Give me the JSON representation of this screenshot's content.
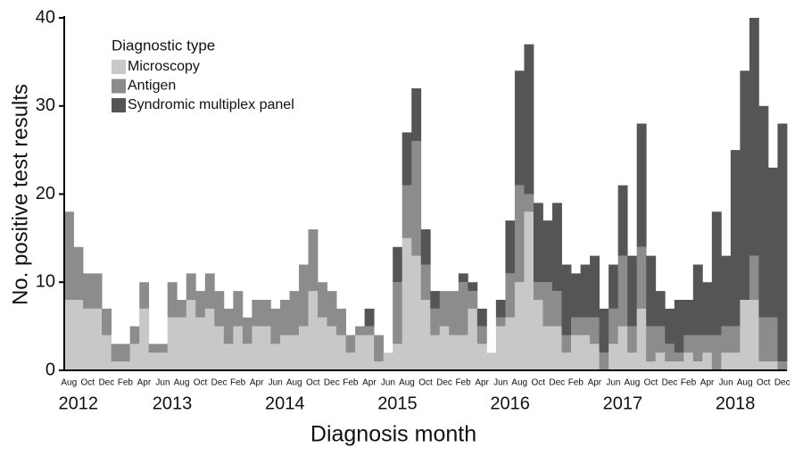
{
  "chart_data": {
    "type": "stacked_bar",
    "x_label": "Diagnosis month",
    "y_label": "No. positive test results",
    "legend_title": "Diagnostic type",
    "legend": "top-left",
    "categories": [
      "Aug",
      null,
      "Oct",
      null,
      "Dec",
      null,
      "Feb",
      null,
      "Apr",
      null,
      "Jun",
      null,
      "Aug",
      null,
      "Oct",
      null,
      "Dec",
      null,
      "Feb",
      null,
      "Apr",
      null,
      "Jun",
      null,
      "Aug",
      null,
      "Oct",
      null,
      "Dec",
      null,
      "Feb",
      null,
      "Apr",
      null,
      "Jun",
      null,
      "Aug",
      null,
      "Oct",
      null,
      "Dec",
      null,
      "Feb",
      null,
      "Apr",
      null,
      "Jun",
      null,
      "Aug",
      null,
      "Oct",
      null,
      "Dec",
      null,
      "Feb",
      null,
      "Apr",
      null,
      "Jun",
      null,
      "Aug",
      null,
      "Oct",
      null,
      "Dec",
      null,
      "Feb",
      null,
      "Apr",
      null,
      "Jun",
      null,
      "Aug",
      null,
      "Oct",
      null,
      "Dec"
    ],
    "years": [
      "2012",
      "2013",
      "2014",
      "2015",
      "2016",
      "2017",
      "2018"
    ],
    "series": [
      {
        "name": "Microscopy",
        "color": "#c8c8c8",
        "values": [
          8,
          8,
          7,
          7,
          4,
          1,
          1,
          3,
          7,
          2,
          2,
          6,
          6,
          8,
          6,
          7,
          5,
          3,
          5,
          3,
          5,
          5,
          3,
          4,
          4,
          5,
          9,
          6,
          5,
          4,
          2,
          4,
          4,
          1,
          2,
          3,
          15,
          13,
          8,
          4,
          5,
          4,
          4,
          7,
          3,
          2,
          5,
          6,
          10,
          18,
          8,
          5,
          5,
          2,
          4,
          4,
          3,
          0,
          3,
          5,
          2,
          7,
          1,
          2,
          1,
          1,
          2,
          1,
          2,
          0,
          2,
          2,
          8,
          8,
          1,
          1,
          0
        ]
      },
      {
        "name": "Antigen",
        "color": "#8c8c8c",
        "values": [
          10,
          6,
          4,
          4,
          3,
          2,
          2,
          2,
          3,
          1,
          1,
          4,
          2,
          3,
          3,
          4,
          4,
          4,
          4,
          3,
          3,
          3,
          4,
          4,
          5,
          7,
          7,
          4,
          4,
          3,
          2,
          1,
          1,
          3,
          0,
          7,
          6,
          13,
          4,
          3,
          4,
          5,
          6,
          2,
          2,
          0,
          1,
          5,
          11,
          2,
          2,
          5,
          4,
          2,
          2,
          2,
          3,
          2,
          4,
          8,
          3,
          7,
          4,
          3,
          2,
          1,
          2,
          3,
          2,
          4,
          3,
          3,
          0,
          5,
          5,
          5,
          1
        ]
      },
      {
        "name": "Syndromic multiplex panel",
        "color": "#555555",
        "values": [
          0,
          0,
          0,
          0,
          0,
          0,
          0,
          0,
          0,
          0,
          0,
          0,
          0,
          0,
          0,
          0,
          0,
          0,
          0,
          0,
          0,
          0,
          0,
          0,
          0,
          0,
          0,
          0,
          0,
          0,
          0,
          0,
          2,
          0,
          0,
          4,
          6,
          6,
          4,
          2,
          0,
          0,
          1,
          1,
          2,
          0,
          2,
          6,
          13,
          17,
          9,
          7,
          10,
          8,
          5,
          6,
          7,
          5,
          5,
          8,
          8,
          14,
          8,
          4,
          4,
          6,
          4,
          8,
          6,
          14,
          8,
          20,
          26,
          27,
          24,
          17,
          27
        ]
      }
    ],
    "ylim": [
      0,
      40
    ],
    "yticks": [
      0,
      10,
      20,
      30,
      40
    ]
  }
}
